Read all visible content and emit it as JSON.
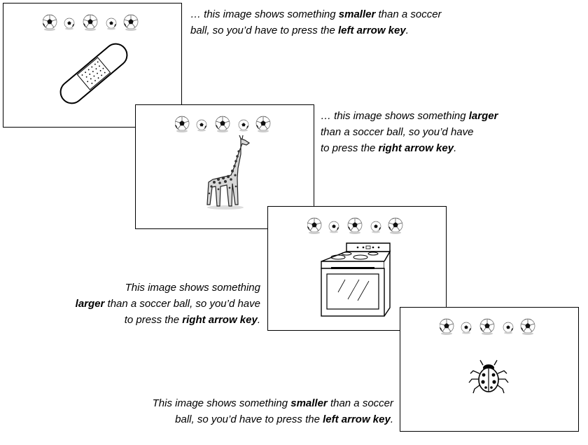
{
  "captions": [
    {
      "line1_pre": "… this image shows something ",
      "line1_bold": "smaller",
      "line1_post": " than a soccer",
      "line2_pre": "ball, so you’d have to press the ",
      "line2_bold": "left arrow key",
      "line2_post": "."
    },
    {
      "line1_pre": "… this image shows something ",
      "line1_bold": "larger",
      "line2": "than a soccer ball, so you’d have",
      "line3_pre": "to press the ",
      "line3_bold": "right arrow key",
      "line3_post": "."
    },
    {
      "line1": "This image shows something",
      "line2_bold": "larger",
      "line2_post": " than a soccer ball, so you’d have",
      "line3_pre": "to press the ",
      "line3_bold": "right arrow key",
      "line3_post": "."
    },
    {
      "line1_pre": "This image shows something ",
      "line1_bold": "smaller",
      "line1_post": " than a soccer",
      "line2_pre": "ball, so you’d have to press the ",
      "line2_bold": "left arrow key",
      "line2_post": "."
    }
  ],
  "icons": {
    "row": "soccer-ball-row-icon",
    "stimuli": [
      "bandage-icon",
      "giraffe-icon",
      "oven-icon",
      "ladybug-icon"
    ]
  }
}
